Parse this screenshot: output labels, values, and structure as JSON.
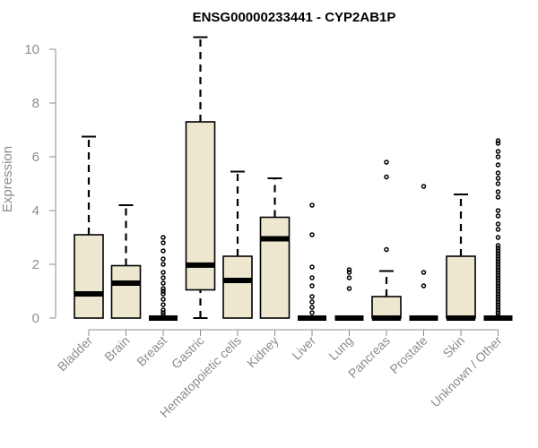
{
  "chart_data": {
    "type": "box",
    "title": "ENSG00000233441 - CYP2AB1P",
    "xlabel": "",
    "ylabel": "Expression",
    "ylim": [
      0,
      10.5
    ],
    "yticks": [
      0,
      2,
      4,
      6,
      8,
      10
    ],
    "grid": false,
    "legend": "none",
    "categories": [
      "Bladder",
      "Brain",
      "Breast",
      "Gastric",
      "Hematopoietic cells",
      "Kidney",
      "Liver",
      "Lung",
      "Pancreas",
      "Prostate",
      "Skin",
      "Unknown / Other"
    ],
    "boxes": [
      {
        "category": "Bladder",
        "whisker_low": 0,
        "q1": 0,
        "median": 0.9,
        "q3": 3.1,
        "whisker_high": 6.75,
        "outliers": []
      },
      {
        "category": "Brain",
        "whisker_low": 0,
        "q1": 0,
        "median": 1.3,
        "q3": 1.95,
        "whisker_high": 4.2,
        "outliers": []
      },
      {
        "category": "Breast",
        "whisker_low": 0,
        "q1": 0,
        "median": 0,
        "q3": 0,
        "whisker_high": 0,
        "outliers": [
          0.1,
          0.2,
          0.3,
          0.5,
          0.7,
          0.9,
          1.0,
          1.1,
          1.3,
          1.5,
          1.7,
          2.0,
          2.2,
          2.5,
          2.8,
          3.0
        ]
      },
      {
        "category": "Gastric",
        "whisker_low": 0,
        "q1": 1.05,
        "median": 1.97,
        "q3": 7.3,
        "whisker_high": 10.45,
        "outliers": []
      },
      {
        "category": "Hematopoietic cells",
        "whisker_low": 0,
        "q1": 0,
        "median": 1.4,
        "q3": 2.3,
        "whisker_high": 5.45,
        "outliers": []
      },
      {
        "category": "Kidney",
        "whisker_low": 0,
        "q1": 0,
        "median": 2.95,
        "q3": 3.75,
        "whisker_high": 5.2,
        "outliers": []
      },
      {
        "category": "Liver",
        "whisker_low": 0,
        "q1": 0,
        "median": 0,
        "q3": 0,
        "whisker_high": 0,
        "outliers": [
          0.2,
          0.4,
          0.6,
          0.8,
          1.2,
          1.5,
          1.9,
          3.1,
          4.2
        ]
      },
      {
        "category": "Lung",
        "whisker_low": 0,
        "q1": 0,
        "median": 0,
        "q3": 0,
        "whisker_high": 0,
        "outliers": [
          1.1,
          1.5,
          1.7,
          1.8
        ]
      },
      {
        "category": "Pancreas",
        "whisker_low": 0,
        "q1": 0,
        "median": 0,
        "q3": 0.8,
        "whisker_high": 1.75,
        "outliers": [
          2.55,
          5.25,
          5.8
        ]
      },
      {
        "category": "Prostate",
        "whisker_low": 0,
        "q1": 0,
        "median": 0,
        "q3": 0,
        "whisker_high": 0,
        "outliers": [
          1.2,
          1.7,
          4.9
        ]
      },
      {
        "category": "Skin",
        "whisker_low": 0,
        "q1": 0,
        "median": 0,
        "q3": 2.3,
        "whisker_high": 4.6,
        "outliers": []
      },
      {
        "category": "Unknown / Other",
        "whisker_low": 0,
        "q1": 0,
        "median": 0,
        "q3": 0,
        "whisker_high": 0,
        "outliers": [
          0.1,
          0.2,
          0.3,
          0.4,
          0.5,
          0.6,
          0.7,
          0.8,
          0.9,
          1.0,
          1.1,
          1.2,
          1.3,
          1.4,
          1.5,
          1.6,
          1.7,
          1.8,
          1.9,
          2.0,
          2.1,
          2.2,
          2.3,
          2.4,
          2.5,
          2.6,
          2.7,
          3.0,
          3.3,
          3.5,
          3.8,
          4.0,
          4.5,
          4.7,
          5.0,
          5.2,
          5.4,
          5.7,
          6.0,
          6.2,
          6.5,
          6.6
        ]
      }
    ],
    "colors": {
      "box_fill": "#ede7cf",
      "box_stroke": "#000000",
      "median": "#000000",
      "axis": "#8c8c8c",
      "text": "#8c8c8c",
      "title": "#000000"
    }
  }
}
